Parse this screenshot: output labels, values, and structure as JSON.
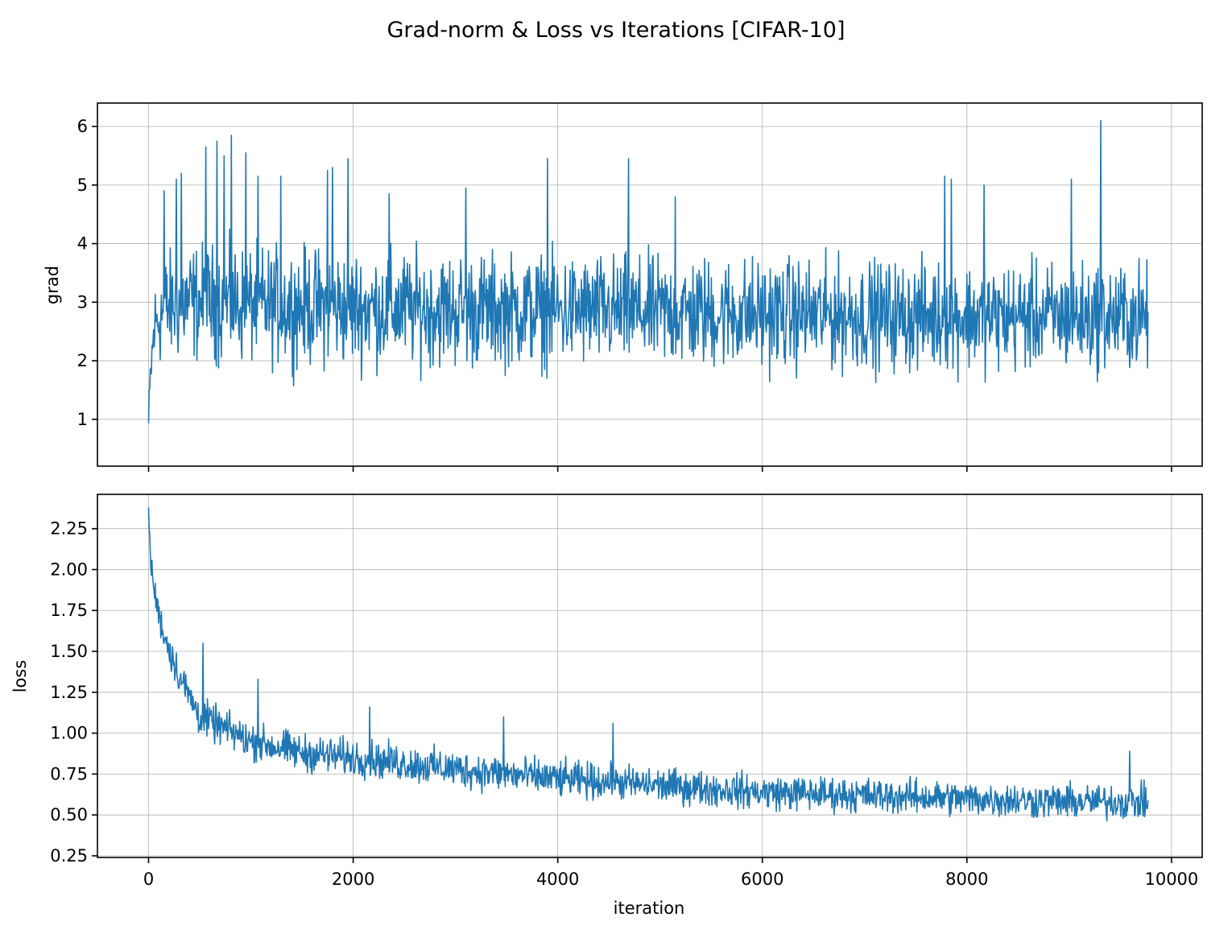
{
  "title": "Grad-norm & Loss vs Iterations [CIFAR-10]",
  "colors": {
    "line": "#1f77b4",
    "grid": "#b0b0b0",
    "axes": "#000000"
  },
  "chart_data": [
    {
      "type": "line",
      "ylabel": "grad",
      "xlabel": "",
      "xlim": [
        -500,
        10300
      ],
      "ylim": [
        0.2,
        6.4
      ],
      "xticks": [
        0,
        2000,
        4000,
        6000,
        8000,
        10000
      ],
      "yticks": [
        1,
        2,
        3,
        4,
        5,
        6
      ],
      "ytick_labels": [
        "1",
        "2",
        "3",
        "4",
        "5",
        "6"
      ],
      "grid": true,
      "x_range": [
        0,
        9770
      ],
      "profile": {
        "x": [
          0,
          20,
          60,
          150,
          400,
          1000,
          2000,
          4000,
          6000,
          8000,
          9770
        ],
        "center": [
          0.9,
          1.8,
          2.6,
          2.9,
          3.0,
          2.95,
          2.9,
          2.85,
          2.8,
          2.75,
          2.75
        ],
        "spread": [
          0.5,
          0.8,
          1.0,
          1.2,
          1.3,
          1.3,
          1.3,
          1.25,
          1.25,
          1.2,
          1.2
        ]
      },
      "spikes": [
        {
          "x": 150,
          "y": 4.9
        },
        {
          "x": 270,
          "y": 5.1
        },
        {
          "x": 320,
          "y": 5.2
        },
        {
          "x": 560,
          "y": 5.65
        },
        {
          "x": 670,
          "y": 5.75
        },
        {
          "x": 740,
          "y": 5.5
        },
        {
          "x": 810,
          "y": 5.85
        },
        {
          "x": 950,
          "y": 5.55
        },
        {
          "x": 1070,
          "y": 5.15
        },
        {
          "x": 1290,
          "y": 5.15
        },
        {
          "x": 1750,
          "y": 5.25
        },
        {
          "x": 1800,
          "y": 5.3
        },
        {
          "x": 1950,
          "y": 5.45
        },
        {
          "x": 2350,
          "y": 4.85
        },
        {
          "x": 3100,
          "y": 4.95
        },
        {
          "x": 3900,
          "y": 5.45
        },
        {
          "x": 4690,
          "y": 5.45
        },
        {
          "x": 5150,
          "y": 4.8
        },
        {
          "x": 7780,
          "y": 5.15
        },
        {
          "x": 7850,
          "y": 5.1
        },
        {
          "x": 8170,
          "y": 5.0
        },
        {
          "x": 9020,
          "y": 5.1
        },
        {
          "x": 9310,
          "y": 6.1
        }
      ],
      "series": [
        {
          "name": "",
          "color": "#1f77b4"
        }
      ]
    },
    {
      "type": "line",
      "ylabel": "loss",
      "xlabel": "iteration",
      "xlim": [
        -500,
        10300
      ],
      "ylim": [
        0.24,
        2.46
      ],
      "xticks": [
        0,
        2000,
        4000,
        6000,
        8000,
        10000
      ],
      "xtick_labels": [
        "0",
        "2000",
        "4000",
        "6000",
        "8000",
        "10000"
      ],
      "yticks": [
        0.25,
        0.5,
        0.75,
        1.0,
        1.25,
        1.5,
        1.75,
        2.0,
        2.25
      ],
      "ytick_labels": [
        "0.25",
        "0.50",
        "0.75",
        "1.00",
        "1.25",
        "1.50",
        "1.75",
        "2.00",
        "2.25"
      ],
      "grid": true,
      "x_range": [
        0,
        9770
      ],
      "profile": {
        "x": [
          0,
          20,
          60,
          150,
          300,
          500,
          1000,
          1500,
          2000,
          3000,
          4000,
          5000,
          6000,
          7000,
          8000,
          9000,
          9770
        ],
        "center": [
          2.35,
          2.05,
          1.85,
          1.6,
          1.35,
          1.1,
          0.95,
          0.88,
          0.85,
          0.78,
          0.72,
          0.68,
          0.64,
          0.62,
          0.6,
          0.58,
          0.58
        ],
        "spread": [
          0.05,
          0.1,
          0.12,
          0.14,
          0.15,
          0.15,
          0.15,
          0.15,
          0.15,
          0.15,
          0.15,
          0.14,
          0.14,
          0.14,
          0.14,
          0.14,
          0.14
        ]
      },
      "spikes": [
        {
          "x": 0,
          "y": 2.38
        },
        {
          "x": 530,
          "y": 1.55
        },
        {
          "x": 1070,
          "y": 1.33
        },
        {
          "x": 2160,
          "y": 1.16
        },
        {
          "x": 3470,
          "y": 1.1
        },
        {
          "x": 4540,
          "y": 1.06
        },
        {
          "x": 9590,
          "y": 0.89
        }
      ],
      "series": [
        {
          "name": "",
          "color": "#1f77b4"
        }
      ]
    }
  ]
}
